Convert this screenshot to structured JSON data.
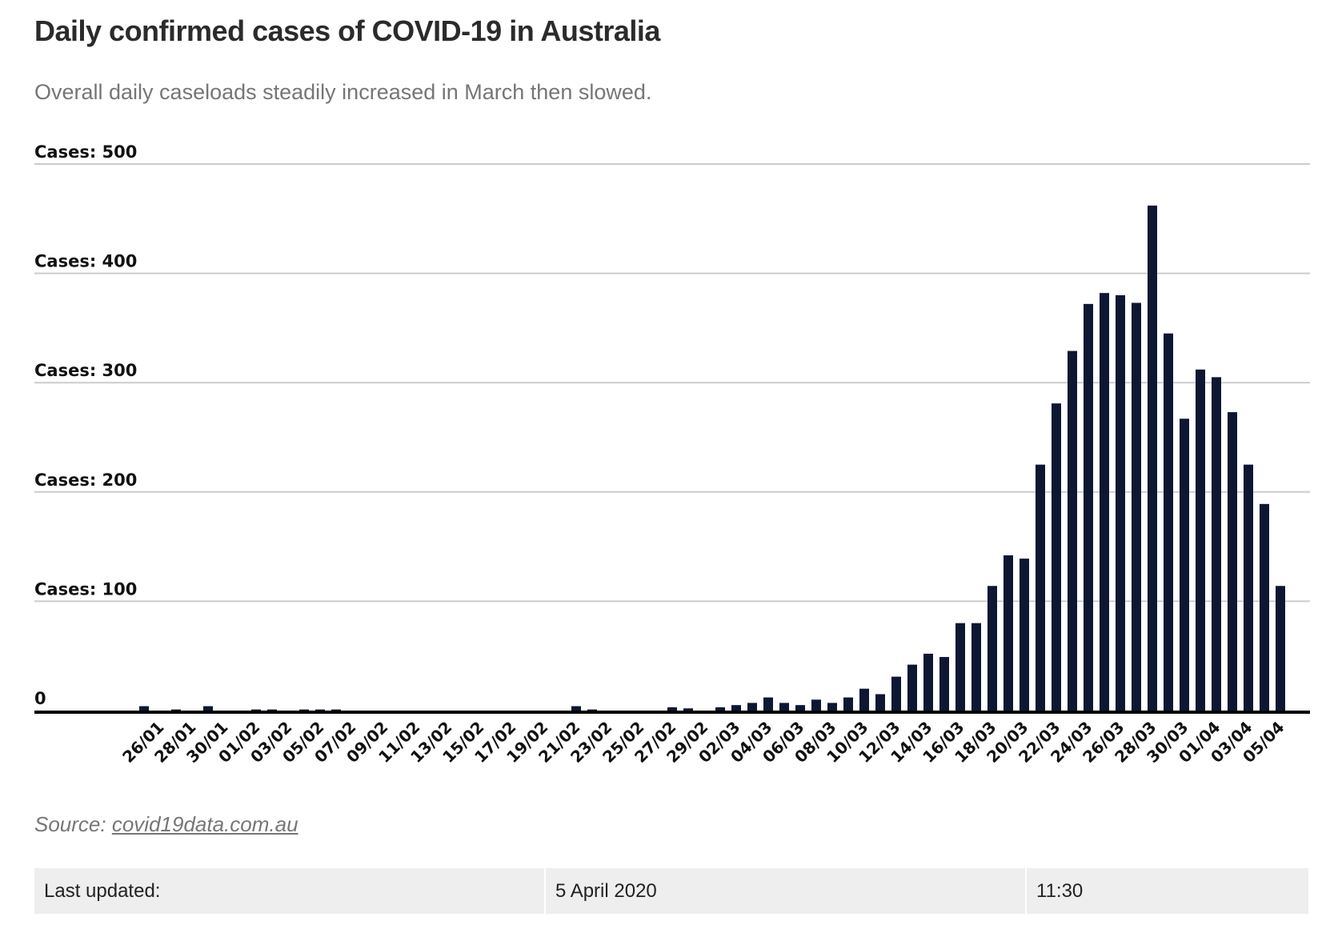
{
  "chart_data": {
    "type": "bar",
    "title": "Daily confirmed cases of COVID-19 in Australia",
    "subtitle": "Overall daily caseloads steadily increased in March then slowed.",
    "xlabel": "",
    "ylabel": "Cases",
    "ylim": [
      0,
      500
    ],
    "grid": true,
    "y_ticks": [
      {
        "value": 0,
        "label": "0"
      },
      {
        "value": 100,
        "label": "Cases: 100"
      },
      {
        "value": 200,
        "label": "Cases: 200"
      },
      {
        "value": 300,
        "label": "Cases: 300"
      },
      {
        "value": 400,
        "label": "Cases: 400"
      },
      {
        "value": 500,
        "label": "Cases: 500"
      }
    ],
    "categories": [
      "25/01",
      "26/01",
      "27/01",
      "28/01",
      "29/01",
      "30/01",
      "31/01",
      "01/02",
      "02/02",
      "03/02",
      "04/02",
      "05/02",
      "06/02",
      "07/02",
      "08/02",
      "09/02",
      "10/02",
      "11/02",
      "12/02",
      "13/02",
      "14/02",
      "15/02",
      "16/02",
      "17/02",
      "18/02",
      "19/02",
      "20/02",
      "21/02",
      "22/02",
      "23/02",
      "24/02",
      "25/02",
      "26/02",
      "27/02",
      "28/02",
      "29/02",
      "01/03",
      "02/03",
      "03/03",
      "04/03",
      "05/03",
      "06/03",
      "07/03",
      "08/03",
      "09/03",
      "10/03",
      "11/03",
      "12/03",
      "13/03",
      "14/03",
      "15/03",
      "16/03",
      "17/03",
      "18/03",
      "19/03",
      "20/03",
      "21/03",
      "22/03",
      "23/03",
      "24/03",
      "25/03",
      "26/03",
      "27/03",
      "28/03",
      "29/03",
      "30/03",
      "31/03",
      "01/04",
      "02/04",
      "03/04",
      "04/04",
      "05/04"
    ],
    "values": [
      4,
      0,
      1,
      0,
      4,
      0,
      0,
      1,
      1,
      0,
      1,
      1,
      1,
      0,
      0,
      0,
      0,
      0,
      0,
      0,
      0,
      0,
      0,
      0,
      0,
      0,
      0,
      4,
      1,
      0,
      0,
      0,
      0,
      3,
      2,
      0,
      3,
      5,
      7,
      12,
      7,
      5,
      10,
      7,
      12,
      20,
      15,
      31,
      42,
      52,
      49,
      80,
      80,
      114,
      142,
      139,
      225,
      281,
      329,
      372,
      382,
      380,
      373,
      462,
      345,
      267,
      312,
      305,
      273,
      225,
      189,
      114
    ],
    "shown_x_labels": [
      "26/01",
      "28/01",
      "30/01",
      "01/02",
      "03/02",
      "05/02",
      "07/02",
      "09/02",
      "11/02",
      "13/02",
      "15/02",
      "17/02",
      "19/02",
      "21/02",
      "23/02",
      "25/02",
      "27/02",
      "29/02",
      "02/03",
      "04/03",
      "06/03",
      "08/03",
      "10/03",
      "12/03",
      "14/03",
      "16/03",
      "18/03",
      "20/03",
      "22/03",
      "24/03",
      "26/03",
      "28/03",
      "30/03",
      "01/04",
      "03/04",
      "05/04"
    ],
    "bar_color": "#0d1733",
    "grid_color": "#cccccc",
    "axis_color": "#000000"
  },
  "source": {
    "prefix": "Source: ",
    "link_text": "covid19data.com.au"
  },
  "updated": {
    "label": "Last updated:",
    "date": "5 April 2020",
    "time": "11:30"
  }
}
